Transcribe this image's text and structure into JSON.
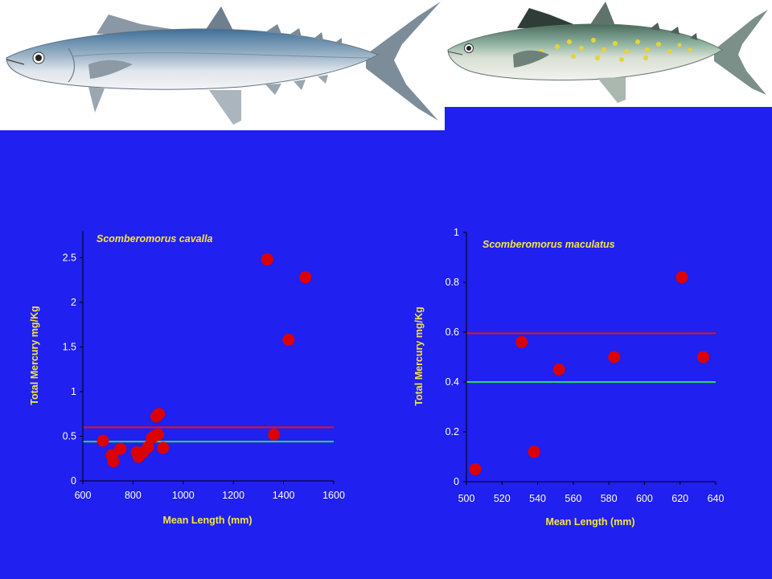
{
  "colors": {
    "background": "#2020f0",
    "text_yellow": "#f5e642",
    "tick_white": "#ffffff",
    "point_red": "#dd0000",
    "line_red": "#ee1111",
    "line_green": "#22dd66"
  },
  "images": {
    "left_fish": "king-mackerel-illustration",
    "right_fish": "spanish-mackerel-illustration"
  },
  "chart_data": [
    {
      "type": "scatter",
      "title": "Scomberomorus cavalla",
      "xlabel": "Mean Length (mm)",
      "ylabel": "Total Mercury mg/Kg",
      "xlim": [
        600,
        1600
      ],
      "ylim": [
        0,
        2.8
      ],
      "xticks": [
        600,
        800,
        1000,
        1200,
        1400,
        1600
      ],
      "yticks": [
        0,
        0.5,
        1,
        1.5,
        2,
        2.5
      ],
      "xtick_labels": [
        "600",
        "800",
        "1000",
        "1200",
        "1400",
        "1600"
      ],
      "ytick_labels": [
        "0",
        "0.5",
        "1",
        "1.5",
        "2",
        "2.5"
      ],
      "reference_lines": [
        {
          "y": 0.6,
          "color": "red"
        },
        {
          "y": 0.44,
          "color": "green"
        }
      ],
      "grid": false,
      "points": [
        {
          "x": 680,
          "y": 0.45
        },
        {
          "x": 715,
          "y": 0.29
        },
        {
          "x": 722,
          "y": 0.22
        },
        {
          "x": 750,
          "y": 0.36
        },
        {
          "x": 815,
          "y": 0.32
        },
        {
          "x": 822,
          "y": 0.27
        },
        {
          "x": 840,
          "y": 0.32
        },
        {
          "x": 860,
          "y": 0.38
        },
        {
          "x": 875,
          "y": 0.48
        },
        {
          "x": 885,
          "y": 0.5
        },
        {
          "x": 893,
          "y": 0.72
        },
        {
          "x": 900,
          "y": 0.52
        },
        {
          "x": 903,
          "y": 0.75
        },
        {
          "x": 920,
          "y": 0.37
        },
        {
          "x": 1335,
          "y": 2.48
        },
        {
          "x": 1362,
          "y": 0.52
        },
        {
          "x": 1420,
          "y": 1.58
        },
        {
          "x": 1487,
          "y": 2.28
        }
      ]
    },
    {
      "type": "scatter",
      "title": "Scomberomorus maculatus",
      "xlabel": "Mean Length (mm)",
      "ylabel": "Total Mercury mg/Kg",
      "xlim": [
        500,
        640
      ],
      "ylim": [
        0,
        1
      ],
      "xticks": [
        500,
        520,
        540,
        560,
        580,
        600,
        620,
        640
      ],
      "yticks": [
        0,
        0.2,
        0.4,
        0.6,
        0.8,
        1
      ],
      "xtick_labels": [
        "500",
        "520",
        "540",
        "560",
        "580",
        "600",
        "620",
        "640"
      ],
      "ytick_labels": [
        "0",
        "0.2",
        "0.4",
        "0.6",
        "0.8",
        "1"
      ],
      "reference_lines": [
        {
          "y": 0.595,
          "color": "red"
        },
        {
          "y": 0.4,
          "color": "green"
        }
      ],
      "grid": false,
      "points": [
        {
          "x": 505,
          "y": 0.05
        },
        {
          "x": 531,
          "y": 0.56
        },
        {
          "x": 538,
          "y": 0.12
        },
        {
          "x": 552,
          "y": 0.45
        },
        {
          "x": 583,
          "y": 0.5
        },
        {
          "x": 621,
          "y": 0.82
        },
        {
          "x": 633,
          "y": 0.5
        }
      ]
    }
  ]
}
